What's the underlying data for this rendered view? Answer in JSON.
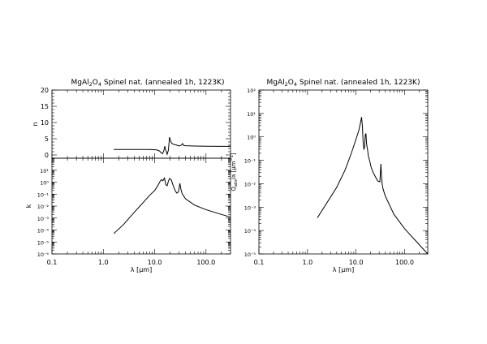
{
  "chart_data": [
    {
      "type": "line",
      "id": "n",
      "title": "MgAl₂O₄ Spinel nat. (annealed 1h, 1223K)",
      "xlabel": "",
      "ylabel": "n",
      "xscale": "log",
      "yscale": "linear",
      "xlim": [
        0.1,
        300
      ],
      "ylim": [
        -1,
        20
      ],
      "yticks": [
        0,
        5,
        10,
        15,
        20
      ],
      "ytick_labels": [
        "0",
        "5",
        "10",
        "15",
        "20"
      ],
      "series": [
        {
          "x": [
            1.6,
            3,
            6,
            9,
            11,
            12.5,
            13.5,
            14.2,
            15,
            15.8,
            16.5,
            17.5,
            18.5,
            19.5,
            20.5,
            21.5,
            23,
            26,
            30,
            33,
            35,
            37,
            40,
            60,
            100,
            200,
            300
          ],
          "y": [
            1.7,
            1.7,
            1.7,
            1.66,
            1.55,
            1.2,
            0.6,
            0.4,
            1.2,
            2.7,
            1.4,
            0.2,
            1.5,
            5.5,
            4.2,
            3.6,
            3.3,
            3.1,
            2.8,
            3.0,
            3.5,
            2.9,
            2.85,
            2.75,
            2.7,
            2.65,
            2.65
          ]
        }
      ]
    },
    {
      "type": "line",
      "id": "k",
      "title": "",
      "xlabel": "λ [µm]",
      "ylabel": "k",
      "xscale": "log",
      "yscale": "log",
      "xlim": [
        0.1,
        300
      ],
      "ylim": [
        1e-06,
        100
      ],
      "xticks": [
        0.1,
        1,
        10,
        100
      ],
      "xtick_labels": [
        "0.1",
        "1.0",
        "10.0",
        "100.0"
      ],
      "yticks": [
        1e-06,
        1e-05,
        0.0001,
        0.001,
        0.01,
        0.1,
        1,
        10
      ],
      "ytick_labels": [
        "10⁻⁶",
        "10⁻⁵",
        "10⁻⁴",
        "10⁻³",
        "10⁻²",
        "10⁻¹",
        "10⁰",
        "10¹"
      ],
      "series": [
        {
          "x": [
            1.6,
            2.5,
            4,
            6,
            8,
            10,
            11.5,
            12.5,
            13.5,
            14.5,
            15.5,
            16.5,
            17.5,
            18.5,
            19.5,
            21,
            23,
            25,
            27,
            29,
            31,
            32.5,
            34,
            36,
            40,
            60,
            100,
            200,
            300
          ],
          "y": [
            5e-05,
            0.0003,
            0.003,
            0.02,
            0.08,
            0.2,
            0.5,
            1.0,
            1.6,
            1.3,
            2.2,
            0.6,
            0.5,
            1.2,
            2.0,
            1.6,
            0.5,
            0.2,
            0.12,
            0.15,
            0.8,
            0.25,
            0.12,
            0.08,
            0.04,
            0.012,
            0.005,
            0.002,
            0.0012
          ]
        }
      ]
    },
    {
      "type": "line",
      "id": "q",
      "title": "MgAl₂O₄ Spinel nat. (annealed 1h, 1223K)",
      "xlabel": "λ [µm]",
      "ylabel": "Q_abs/a [µm⁻¹]",
      "xscale": "log",
      "yscale": "log",
      "xlim": [
        0.1,
        300
      ],
      "ylim": [
        1e-05,
        100
      ],
      "xticks": [
        0.1,
        1,
        10,
        100
      ],
      "xtick_labels": [
        "0.1",
        "1.0",
        "10.0",
        "100.0"
      ],
      "yticks": [
        1e-05,
        0.0001,
        0.001,
        0.01,
        0.1,
        1,
        10,
        100
      ],
      "ytick_labels": [
        "10⁻⁵",
        "10⁻⁴",
        "10⁻³",
        "10⁻²",
        "10⁻¹",
        "10⁰",
        "10¹",
        "10²"
      ],
      "series": [
        {
          "x": [
            1.6,
            2.5,
            4,
            6,
            8,
            10,
            11.5,
            12.5,
            13.0,
            13.5,
            14.0,
            14.5,
            15.0,
            15.5,
            16.0,
            16.5,
            17.2,
            18.0,
            19.0,
            20.5,
            22.5,
            25,
            28,
            31,
            32.5,
            33.5,
            34.5,
            36,
            40,
            60,
            100,
            200,
            300
          ],
          "y": [
            0.00035,
            0.0015,
            0.007,
            0.04,
            0.2,
            0.8,
            2.0,
            4.5,
            7.0,
            3.0,
            0.6,
            0.3,
            0.35,
            1.2,
            1.4,
            0.5,
            0.3,
            0.15,
            0.1,
            0.05,
            0.03,
            0.02,
            0.013,
            0.012,
            0.07,
            0.02,
            0.01,
            0.006,
            0.003,
            0.0005,
            0.00012,
            2.5e-05,
            1e-05
          ]
        }
      ]
    }
  ]
}
